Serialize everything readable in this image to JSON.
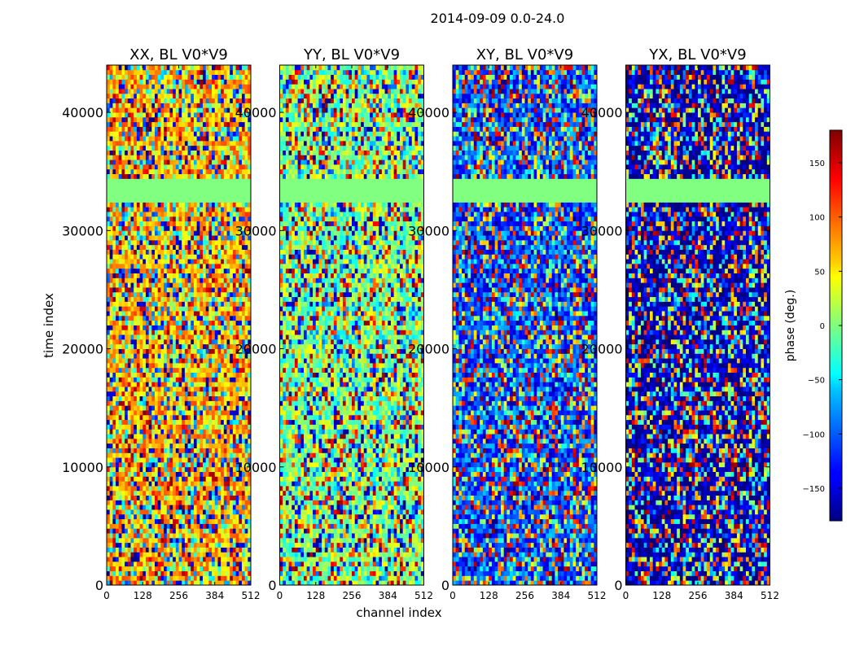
{
  "figure": {
    "suptitle": "2014-09-09 0.0-24.0"
  },
  "chart_data": {
    "type": "heatmap",
    "xlabel": "channel index",
    "ylabel": "time index",
    "xlim": [
      0,
      512
    ],
    "ylim": [
      0,
      44000
    ],
    "xticks": [
      0,
      128,
      256,
      384,
      512
    ],
    "yticks": [
      0,
      10000,
      20000,
      30000,
      40000
    ],
    "grid": false,
    "panels": [
      {
        "title": "XX, BL V0*V9",
        "dominant_phase_deg": 70
      },
      {
        "title": "YY, BL V0*V9",
        "dominant_phase_deg": 0
      },
      {
        "title": "XY, BL V0*V9",
        "dominant_phase_deg": -110
      },
      {
        "title": "YX, BL V0*V9",
        "dominant_phase_deg": -170
      }
    ],
    "flagged_rows": {
      "from": 32700,
      "to": 34400,
      "value_deg": 0
    },
    "colorbar": {
      "label": "phase (deg.)",
      "range": [
        -180,
        180
      ],
      "ticks": [
        150,
        100,
        50,
        0,
        -50,
        -100,
        -150
      ],
      "colormap": "jet"
    }
  }
}
